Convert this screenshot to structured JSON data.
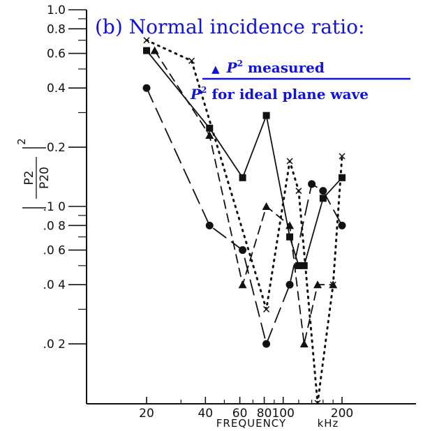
{
  "chart_data": {
    "type": "line",
    "title": "",
    "xlabel": "FREQUENCY",
    "x_unit": "kHz",
    "ylabel": {
      "numerator": "P2",
      "denominator": "P20",
      "exponent": "2"
    },
    "xscale": "log",
    "yscale": "log",
    "xlim": [
      10,
      500
    ],
    "ylim": [
      0.01,
      1.0
    ],
    "grid": false,
    "x_ticks": [
      {
        "value": 20,
        "label": "20"
      },
      {
        "value": 40,
        "label": "40"
      },
      {
        "value": 60,
        "label": "60"
      },
      {
        "value": 80,
        "label": "80"
      },
      {
        "value": 100,
        "label": "100"
      },
      {
        "value": 200,
        "label": "200"
      }
    ],
    "x_minor_ticks": [
      30,
      50,
      70,
      90,
      120,
      140,
      160,
      180
    ],
    "y_ticks": [
      {
        "value": 1.0,
        "label": "1.0"
      },
      {
        "value": 0.8,
        "label": "0.8"
      },
      {
        "value": 0.6,
        "label": "0.6"
      },
      {
        "value": 0.4,
        "label": "0.4"
      },
      {
        "value": 0.2,
        "label": "0.2"
      },
      {
        "value": 0.1,
        "label": ".1 0"
      },
      {
        "value": 0.08,
        "label": ".0 8"
      },
      {
        "value": 0.06,
        "label": ".0 6"
      },
      {
        "value": 0.04,
        "label": ".0 4"
      },
      {
        "value": 0.02,
        "label": ".0 2"
      }
    ],
    "y_minor_ticks": [
      0.9,
      0.7,
      0.5,
      0.3,
      0.09,
      0.07,
      0.05,
      0.03
    ],
    "annotation": {
      "title": "(b) Normal incidence ratio:",
      "marker_symbol": "▲",
      "numerator_var": "P",
      "numerator_sup": "2",
      "numerator_text": " measured",
      "denominator_var": "P",
      "denominator_sup": "2",
      "denominator_text": " for ideal plane wave",
      "color": "#1212d8"
    },
    "series": [
      {
        "marker": "square",
        "line": "solid",
        "x": [
          20,
          42,
          62,
          82,
          108,
          120,
          128,
          160,
          200
        ],
        "y": [
          0.62,
          0.25,
          0.14,
          0.29,
          0.07,
          0.05,
          0.05,
          0.11,
          0.14
        ]
      },
      {
        "marker": "circle",
        "line": "longdash",
        "x": [
          20,
          42,
          62,
          82,
          108,
          140,
          160,
          200
        ],
        "y": [
          0.4,
          0.08,
          0.06,
          0.02,
          0.04,
          0.13,
          0.12,
          0.08
        ]
      },
      {
        "marker": "triangle",
        "line": "dash",
        "x": [
          22,
          42,
          62,
          82,
          108,
          128,
          150,
          180
        ],
        "y": [
          0.62,
          0.23,
          0.04,
          0.1,
          0.08,
          0.02,
          0.04,
          0.04
        ]
      },
      {
        "marker": "x",
        "line": "dotted",
        "x": [
          20,
          34,
          82,
          108,
          120,
          150,
          180,
          200
        ],
        "y": [
          0.7,
          0.55,
          0.03,
          0.17,
          0.12,
          0.01,
          0.04,
          0.18
        ]
      }
    ]
  }
}
